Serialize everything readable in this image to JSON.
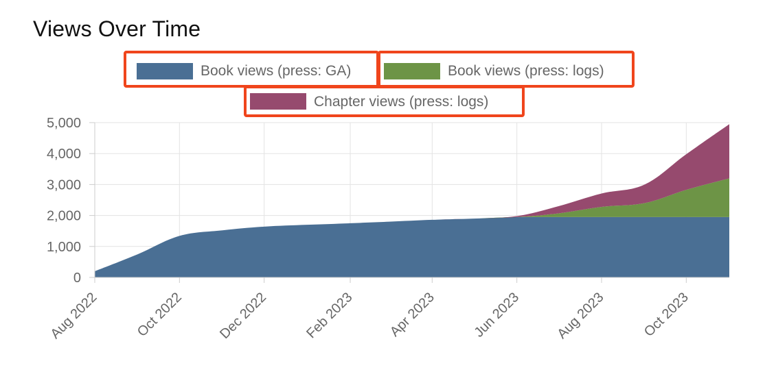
{
  "chart_data": {
    "type": "area",
    "stacked": true,
    "title": "Views Over Time",
    "xlabel": "",
    "ylabel": "",
    "x": [
      "2022-08-01",
      "2022-09-01",
      "2022-10-01",
      "2022-11-01",
      "2022-12-01",
      "2023-01-01",
      "2023-02-01",
      "2023-03-01",
      "2023-04-01",
      "2023-05-01",
      "2023-06-01",
      "2023-07-01",
      "2023-08-01",
      "2023-09-01",
      "2023-10-01",
      "2023-11-01"
    ],
    "x_ticks": [
      "Aug 2022",
      "Oct 2022",
      "Dec 2022",
      "Feb 2023",
      "Apr 2023",
      "Jun 2023",
      "Aug 2023",
      "Oct 2023"
    ],
    "x_tick_dates": [
      "2022-08-01",
      "2022-10-01",
      "2022-12-01",
      "2023-02-01",
      "2023-04-01",
      "2023-06-01",
      "2023-08-01",
      "2023-10-01"
    ],
    "y_ticks": [
      "0",
      "1,000",
      "2,000",
      "3,000",
      "4,000",
      "5,000"
    ],
    "ylim": [
      0,
      5000
    ],
    "grid": true,
    "legend_position": "top-center",
    "series": [
      {
        "name": "Book views (press: GA)",
        "color": "#4a6f94",
        "values": [
          200,
          750,
          1340,
          1520,
          1640,
          1700,
          1750,
          1800,
          1860,
          1900,
          1950,
          1950,
          1950,
          1950,
          1950,
          1950
        ]
      },
      {
        "name": "Book views (press: logs)",
        "color": "#6d9446",
        "values": [
          0,
          0,
          0,
          0,
          0,
          0,
          0,
          0,
          0,
          0,
          0,
          120,
          330,
          450,
          880,
          1250
        ]
      },
      {
        "name": "Chapter views (press: logs)",
        "color": "#964a6e",
        "values": [
          0,
          0,
          0,
          0,
          0,
          0,
          0,
          0,
          0,
          0,
          30,
          230,
          430,
          600,
          1150,
          1750
        ]
      }
    ],
    "highlight_color": "#f0451c"
  }
}
